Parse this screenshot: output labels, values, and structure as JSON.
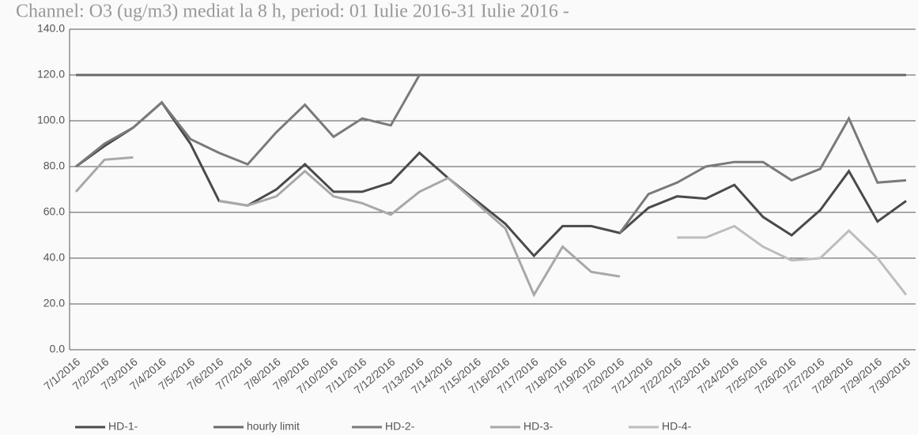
{
  "chart_data": {
    "type": "line",
    "title": "Channel: O3 (ug/m3) mediat la 8 h, period: 01 Iulie 2016-31 Iulie 2016 -",
    "categories": [
      "7/1/2016",
      "7/2/2016",
      "7/3/2016",
      "7/4/2016",
      "7/5/2016",
      "7/6/2016",
      "7/7/2016",
      "7/8/2016",
      "7/9/2016",
      "7/10/2016",
      "7/11/2016",
      "7/12/2016",
      "7/13/2016",
      "7/14/2016",
      "7/15/2016",
      "7/16/2016",
      "7/17/2016",
      "7/18/2016",
      "7/19/2016",
      "7/20/2016",
      "7/21/2016",
      "7/22/2016",
      "7/23/2016",
      "7/24/2016",
      "7/25/2016",
      "7/26/2016",
      "7/27/2016",
      "7/28/2016",
      "7/29/2016",
      "7/30/2016"
    ],
    "series": [
      {
        "name": "HD-1-",
        "color": "#4a4a4a",
        "values": [
          80,
          89,
          97,
          108,
          90,
          65,
          63,
          70,
          81,
          69,
          69,
          73,
          86,
          75,
          65,
          55,
          41,
          54,
          54,
          51,
          62,
          67,
          66,
          72,
          58,
          50,
          61,
          78,
          56,
          65
        ]
      },
      {
        "name": "hourly limit",
        "color": "#6a6a6a",
        "values": [
          120,
          120,
          120,
          120,
          120,
          120,
          120,
          120,
          120,
          120,
          120,
          120,
          120,
          120,
          120,
          120,
          120,
          120,
          120,
          120,
          120,
          120,
          120,
          120,
          120,
          120,
          120,
          120,
          120,
          120
        ]
      },
      {
        "name": "HD-2-",
        "color": "#7a7a7a",
        "values": [
          80,
          90,
          97,
          108,
          92,
          86,
          81,
          95,
          107,
          93,
          101,
          98,
          120,
          null,
          null,
          null,
          null,
          null,
          null,
          51,
          68,
          73,
          80,
          82,
          82,
          74,
          79,
          101,
          73,
          74
        ]
      },
      {
        "name": "HD-3-",
        "color": "#a8a8a8",
        "values": [
          69,
          83,
          84,
          null,
          null,
          65,
          63,
          67,
          78,
          67,
          64,
          59,
          69,
          75,
          64,
          53,
          24,
          45,
          34,
          32,
          null,
          null,
          null,
          null,
          null,
          null,
          null,
          null,
          null,
          null
        ]
      },
      {
        "name": "HD-4-",
        "color": "#bdbdbd",
        "values": [
          null,
          null,
          null,
          null,
          null,
          null,
          null,
          null,
          null,
          null,
          null,
          null,
          null,
          null,
          null,
          null,
          null,
          null,
          null,
          null,
          null,
          49,
          49,
          54,
          45,
          39,
          40,
          52,
          40,
          24
        ]
      }
    ],
    "ylim": [
      0,
      140
    ],
    "yticks": [
      {
        "value": 0,
        "label": "0.0"
      },
      {
        "value": 20,
        "label": "20.0"
      },
      {
        "value": 40,
        "label": "40.0"
      },
      {
        "value": 60,
        "label": "60.0"
      },
      {
        "value": 80,
        "label": "80.0"
      },
      {
        "value": 100,
        "label": "100.0"
      },
      {
        "value": 120,
        "label": "120.0"
      },
      {
        "value": 140,
        "label": "140.0"
      }
    ],
    "grid": true
  }
}
